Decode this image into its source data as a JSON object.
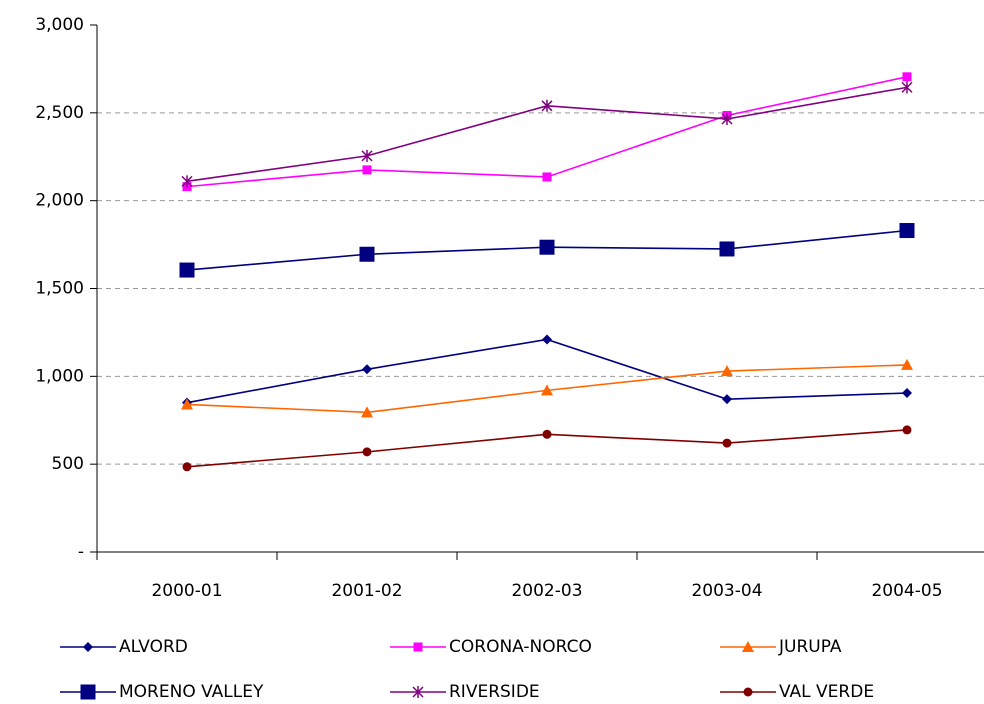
{
  "chart_data": {
    "type": "line",
    "categories": [
      "2000-01",
      "2001-02",
      "2002-03",
      "2003-04",
      "2004-05"
    ],
    "ylim": [
      0,
      3000
    ],
    "yticks": [
      {
        "value": 0,
        "label": "-"
      },
      500,
      {
        "value": 1000,
        "label": "1,000"
      },
      {
        "value": 1500,
        "label": "1,500"
      },
      {
        "value": 2000,
        "label": "2,000"
      },
      {
        "value": 2500,
        "label": "2,500"
      },
      {
        "value": 3000,
        "label": "3,000"
      }
    ],
    "grid": true,
    "legend": "bottom",
    "series": [
      {
        "name": "ALVORD",
        "color": "#000080",
        "marker": "diamond",
        "values": [
          850,
          1040,
          1210,
          870,
          905
        ]
      },
      {
        "name": "CORONA-NORCO",
        "color": "#ff00ff",
        "marker": "square",
        "values": [
          2080,
          2175,
          2135,
          2485,
          2705
        ]
      },
      {
        "name": "JURUPA",
        "color": "#ff6600",
        "marker": "triangle",
        "values": [
          840,
          795,
          920,
          1030,
          1065
        ]
      },
      {
        "name": "MORENO VALLEY",
        "color": "#000080",
        "marker": "bigsquare",
        "values": [
          1605,
          1695,
          1735,
          1725,
          1830
        ]
      },
      {
        "name": "RIVERSIDE",
        "color": "#800080",
        "marker": "star",
        "values": [
          2110,
          2255,
          2540,
          2465,
          2645
        ]
      },
      {
        "name": "VAL VERDE",
        "color": "#800000",
        "marker": "circle",
        "values": [
          485,
          570,
          670,
          620,
          695
        ]
      }
    ]
  }
}
